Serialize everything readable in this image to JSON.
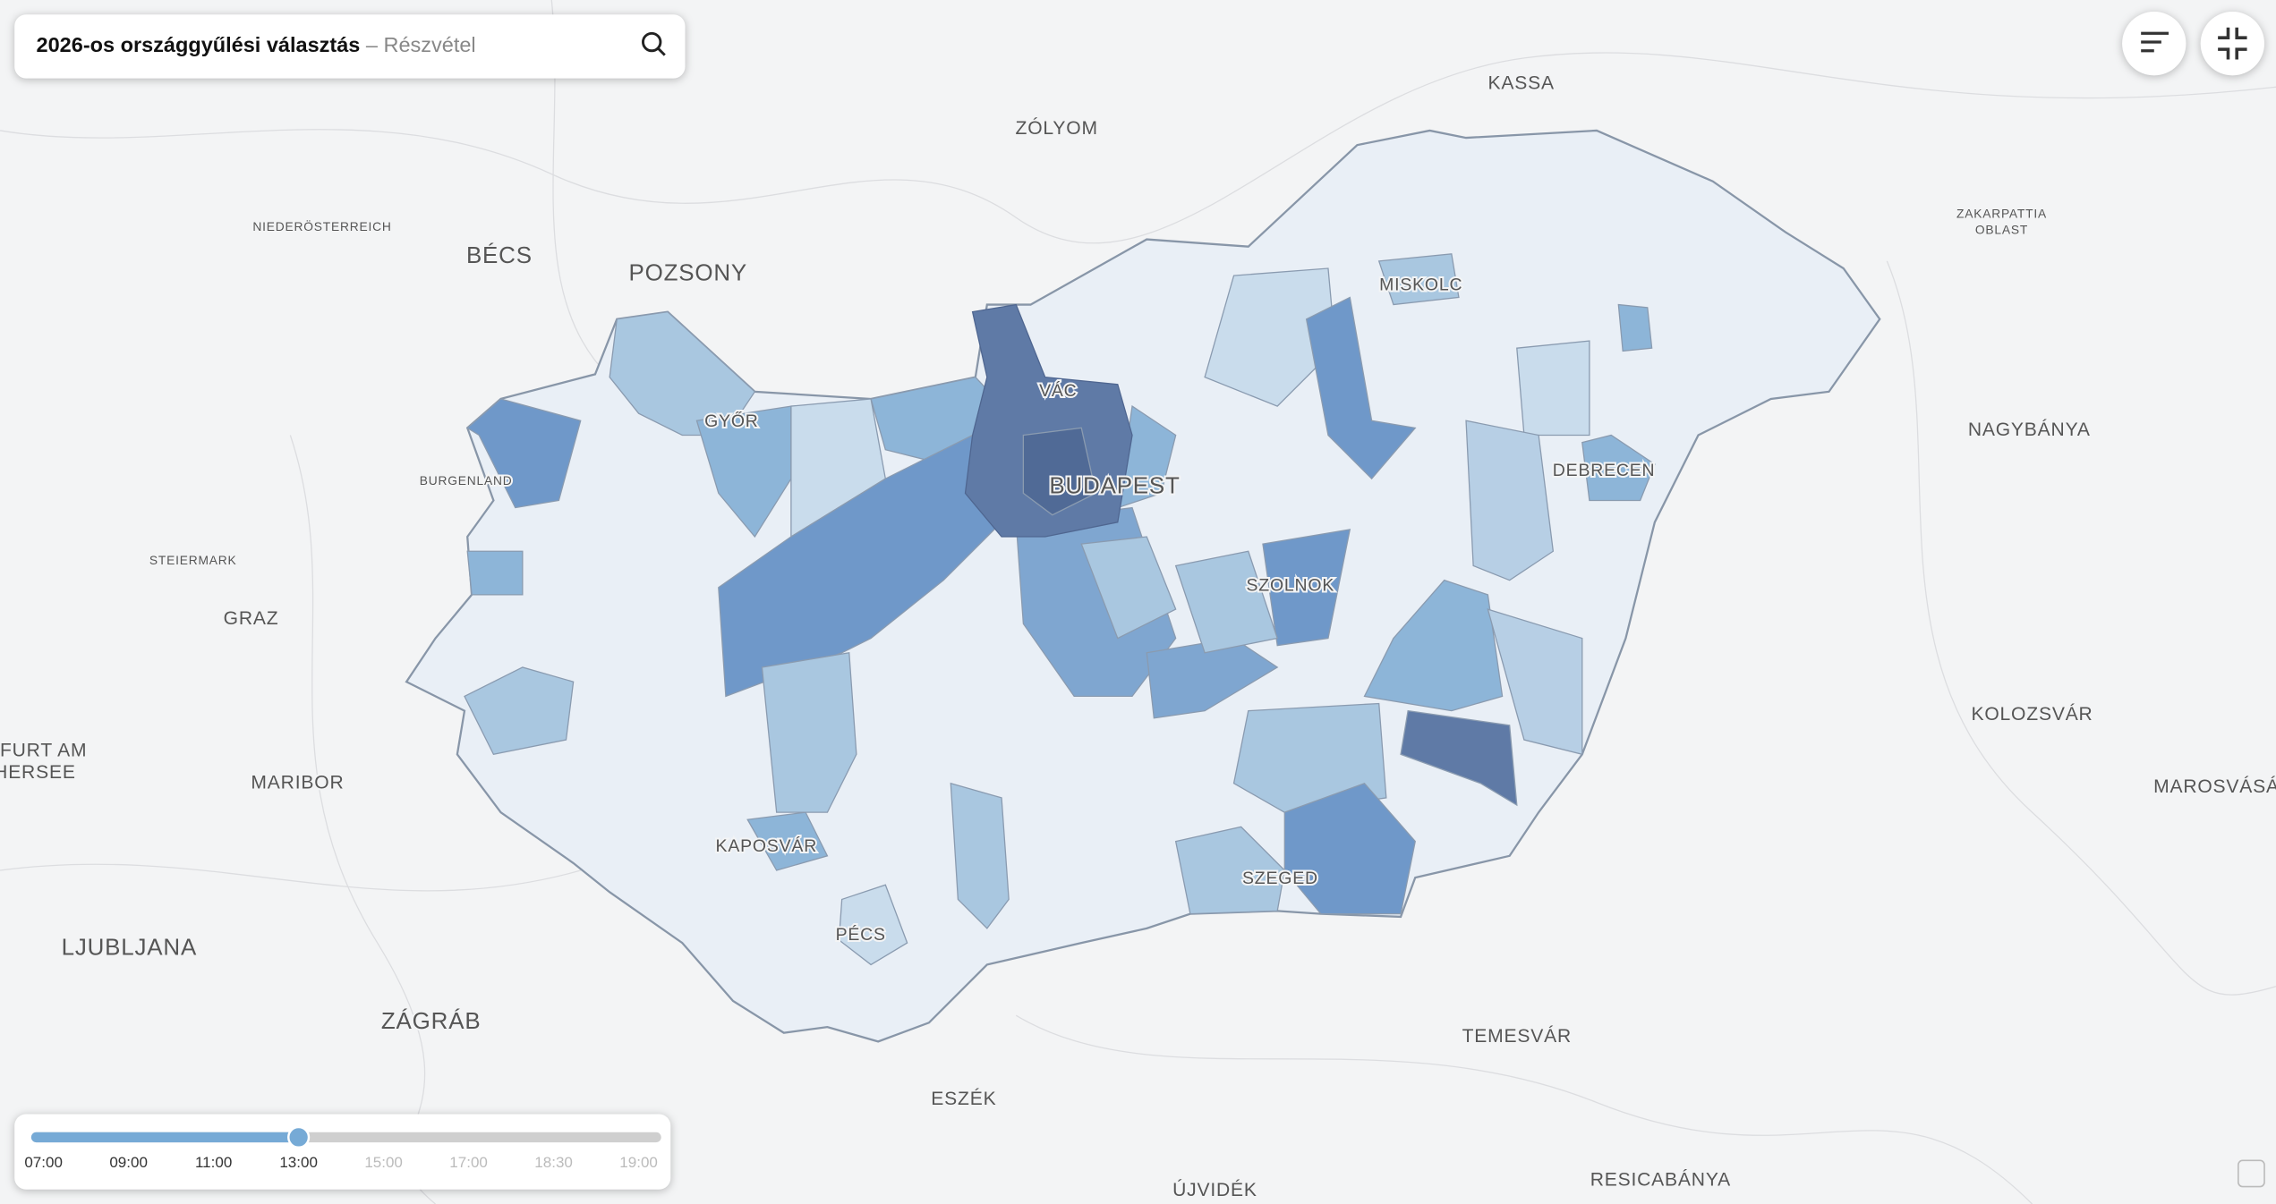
{
  "header": {
    "title": "2026-os országgyűlési választás",
    "subtitle": "– Részvétel"
  },
  "map": {
    "labels": [
      "KASSA",
      "ZÓLYOM",
      "BÉCS",
      "POZSONY",
      "NIEDERÖSTERREICH",
      "ZAKARPATTIA",
      "OBLAST",
      "MISKOLC",
      "VÁC",
      "GYŐR",
      "BURGENLAND",
      "BUDAPEST",
      "DEBRECEN",
      "NAGYBÁNYA",
      "STEIERMARK",
      "GRAZ",
      "SZOLNOK",
      "KOLOZSVÁR",
      "FURT AM",
      "HERSEE",
      "MARIBOR",
      "MAROSVÁSÁ",
      "KAPOSVÁR",
      "SZEGED",
      "PÉCS",
      "LJUBLJANA",
      "ZÁGRÁB",
      "TEMESVÁR",
      "ESZÉK",
      "ÚJVIDÉK",
      "RESICABÁNYA"
    ]
  },
  "timeline": {
    "times": [
      "07:00",
      "09:00",
      "11:00",
      "13:00",
      "15:00",
      "17:00",
      "18:30",
      "19:00"
    ],
    "active_index": 3
  }
}
